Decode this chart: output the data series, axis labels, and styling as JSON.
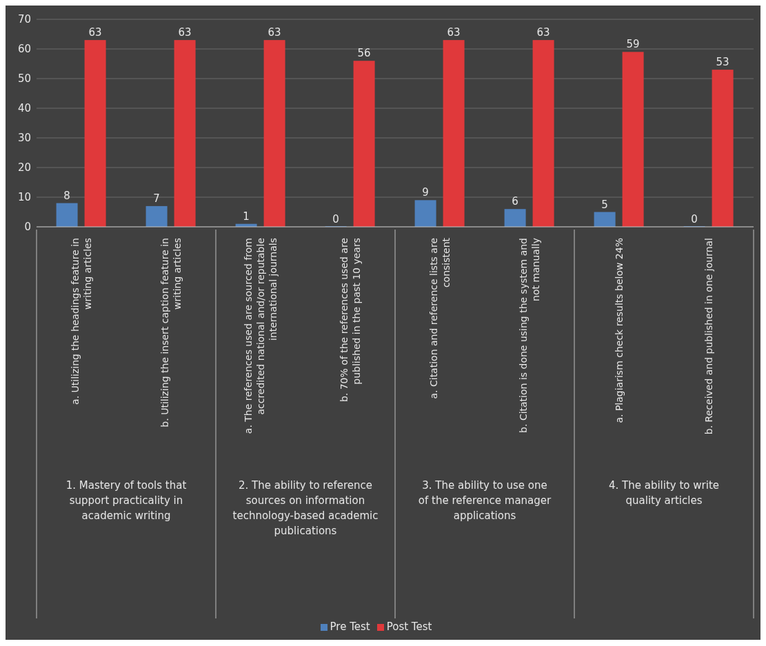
{
  "chart_data": {
    "type": "bar",
    "categories": [
      "a. Utilizing the headings feature in writing articles",
      "b. Utilizing the insert caption feature in writing articles",
      "a. The references used are sourced from accredited national and/or reputable international journals",
      "b. 70% of the references used are published in the past 10 years",
      "a. Citation and reference lists are consistent",
      "b. Citation is done using the system and not manually",
      "a. Plagiarism check results below 24%",
      "b. Received and published in one journal"
    ],
    "series": [
      {
        "name": "Pre Test",
        "color": "#4f81bd",
        "values": [
          8,
          7,
          1,
          0,
          9,
          6,
          5,
          0
        ]
      },
      {
        "name": "Post Test",
        "color": "#e0393b",
        "values": [
          63,
          63,
          63,
          56,
          63,
          63,
          59,
          53
        ]
      }
    ],
    "annotations": [
      "1. Mastery of tools that support practicality in academic writing",
      "2. The ability to reference sources on information technology-based academic publications",
      "3. The ability to use one of the reference manager applications",
      "4. The ability to write quality articles"
    ],
    "ylim": [
      0,
      70
    ],
    "yticks": [
      0,
      10,
      20,
      30,
      40,
      50,
      60,
      70
    ],
    "grid": "y",
    "data_labels": true,
    "legend": "bottom"
  }
}
